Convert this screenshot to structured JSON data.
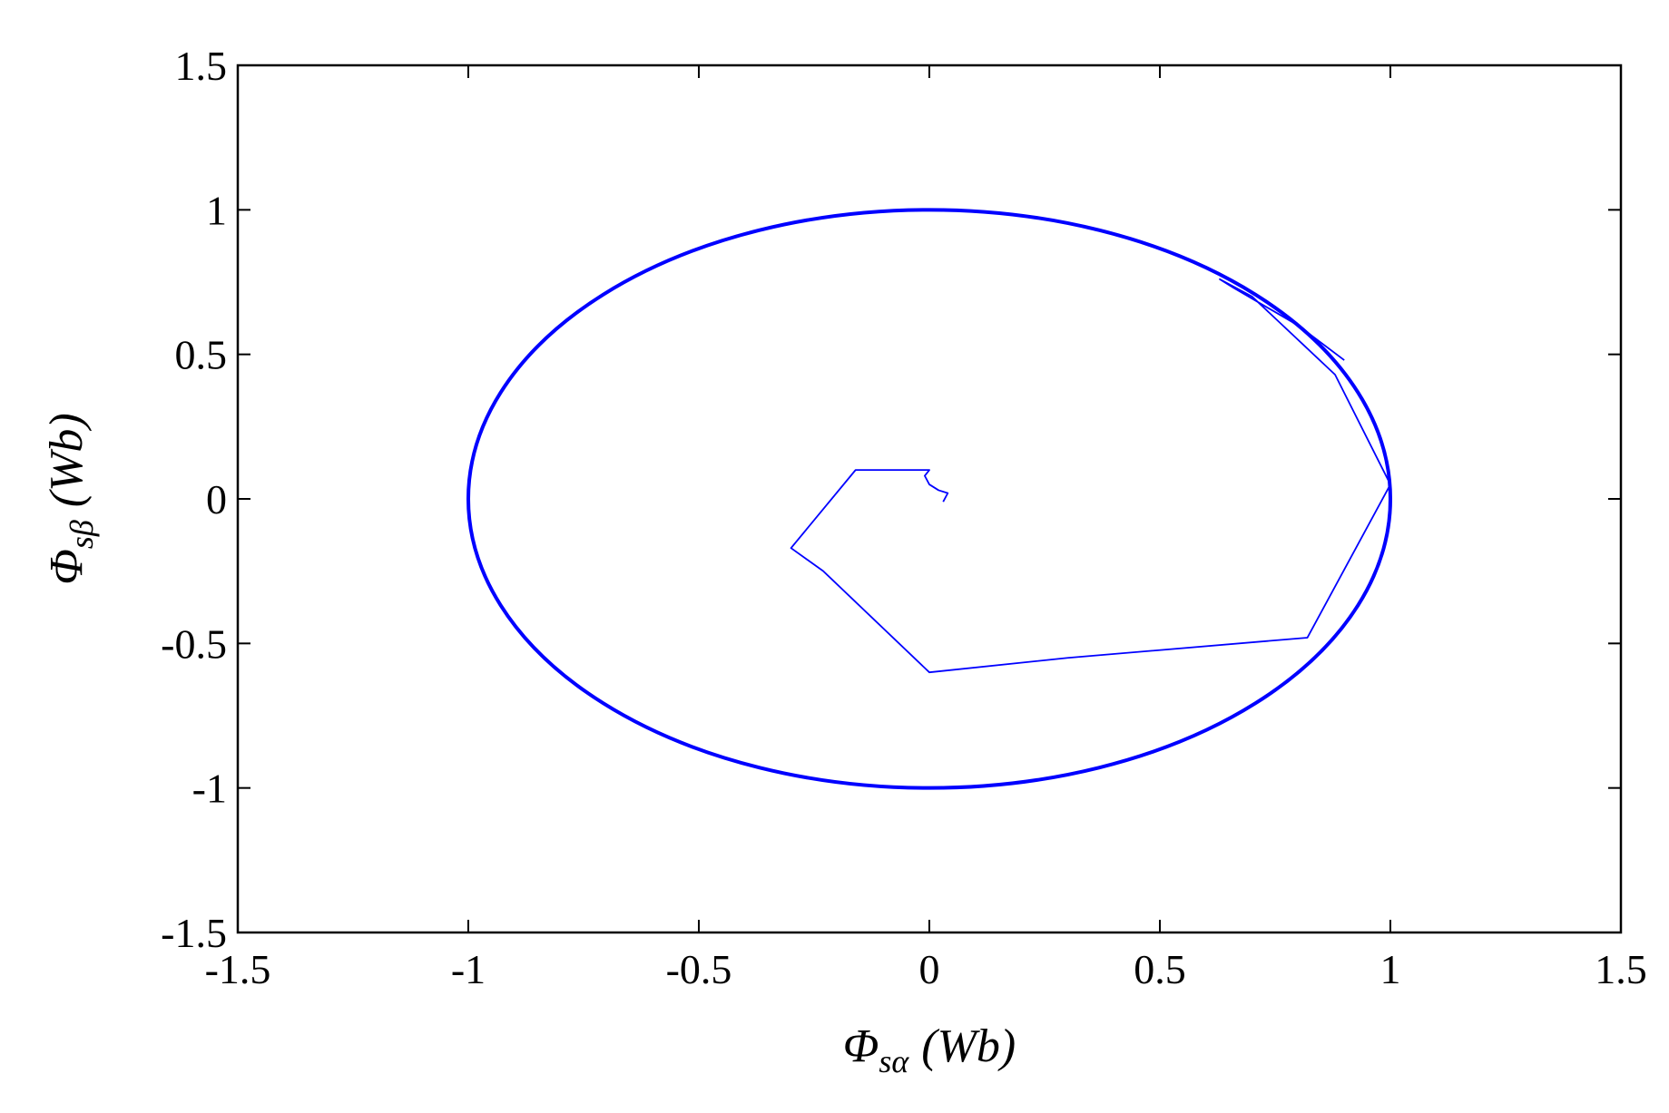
{
  "chart_data": {
    "type": "line",
    "title": "",
    "xlabel": {
      "symbol": "Φ",
      "subscript": "sα",
      "unit": "(Wb)"
    },
    "ylabel": {
      "symbol": "Φ",
      "subscript": "sβ",
      "unit": "(Wb)"
    },
    "xlim": [
      -1.5,
      1.5
    ],
    "ylim": [
      -1.5,
      1.5
    ],
    "xticks": [
      -1.5,
      -1,
      -0.5,
      0,
      0.5,
      1,
      1.5
    ],
    "yticks": [
      -1.5,
      -1,
      -0.5,
      0,
      0.5,
      1,
      1.5
    ],
    "xtick_labels": [
      "-1.5",
      "-1",
      "-0.5",
      "0",
      "0.5",
      "1",
      "1.5"
    ],
    "ytick_labels": [
      "-1.5",
      "-1",
      "-0.5",
      "0",
      "0.5",
      "1",
      "1.5"
    ],
    "grid": false,
    "line_color": "#0000ff",
    "series": [
      {
        "style": "steady-state flux circle",
        "shape": "circle",
        "center": [
          0,
          0
        ],
        "radius": 1.0
      },
      {
        "style": "startup flux trajectory",
        "x": [
          0.03,
          0.04,
          0.02,
          0.0,
          -0.01,
          0.0,
          -0.16,
          -0.3,
          -0.23,
          0.0,
          0.3,
          0.82,
          1.0,
          0.88,
          0.7,
          0.63,
          0.66,
          0.8,
          0.9
        ],
        "y": [
          -0.01,
          0.02,
          0.03,
          0.05,
          0.08,
          0.1,
          0.1,
          -0.17,
          -0.25,
          -0.6,
          -0.55,
          -0.48,
          0.05,
          0.43,
          0.7,
          0.76,
          0.73,
          0.6,
          0.48
        ]
      }
    ]
  }
}
